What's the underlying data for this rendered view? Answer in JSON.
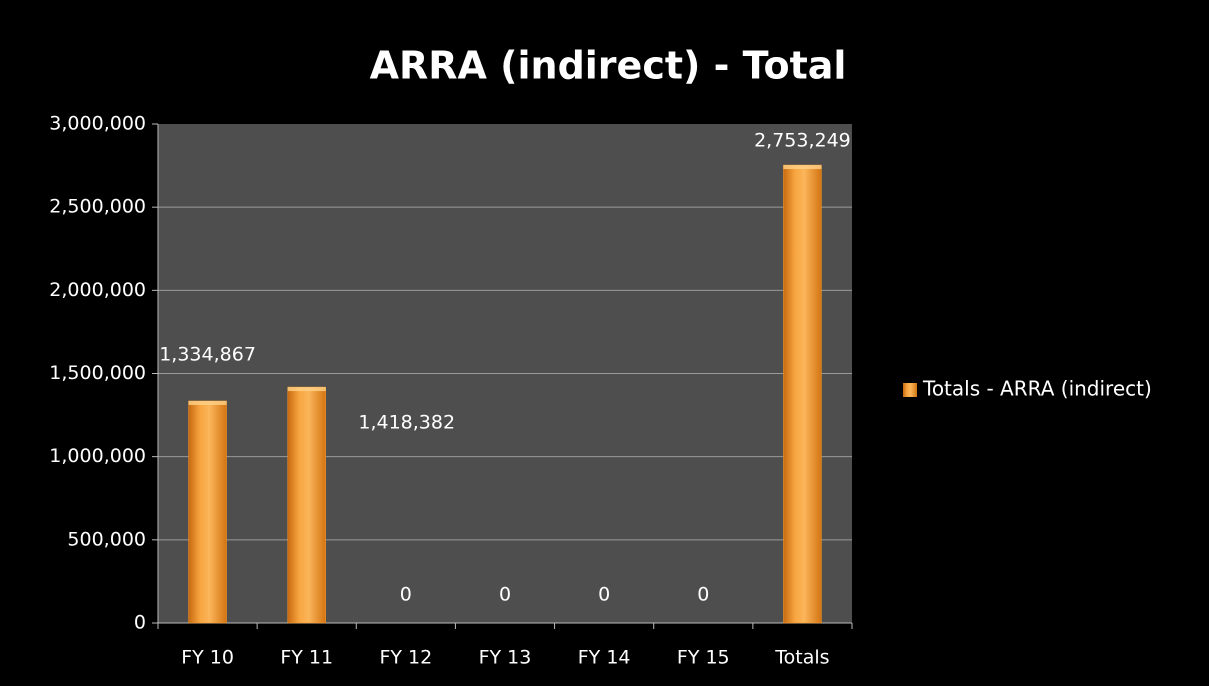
{
  "chart_data": {
    "type": "bar",
    "title": "ARRA (indirect) - Total",
    "categories": [
      "FY 10",
      "FY 11",
      "FY 12",
      "FY 13",
      "FY 14",
      "FY 15",
      "Totals"
    ],
    "series": [
      {
        "name": "Totals - ARRA (indirect)",
        "color": "#f59a2a",
        "values": [
          1334867,
          1418382,
          0,
          0,
          0,
          0,
          2753249
        ],
        "value_labels": [
          "1,334,867",
          "1,418,382",
          "0",
          "0",
          "0",
          "0",
          "2,753,249"
        ]
      }
    ],
    "ylim": [
      0,
      3000000
    ],
    "yticks": [
      0,
      {
        "value": 500000,
        "label": "500,000"
      },
      {
        "value": 1000000,
        "label": "1,000,000"
      },
      {
        "value": 1500000,
        "label": "1,500,000"
      },
      {
        "value": 2000000,
        "label": "2,000,000"
      },
      {
        "value": 2500000,
        "label": "2,500,000"
      },
      {
        "value": 3000000,
        "label": "3,000,000"
      }
    ],
    "grid": true,
    "legend": "right"
  }
}
